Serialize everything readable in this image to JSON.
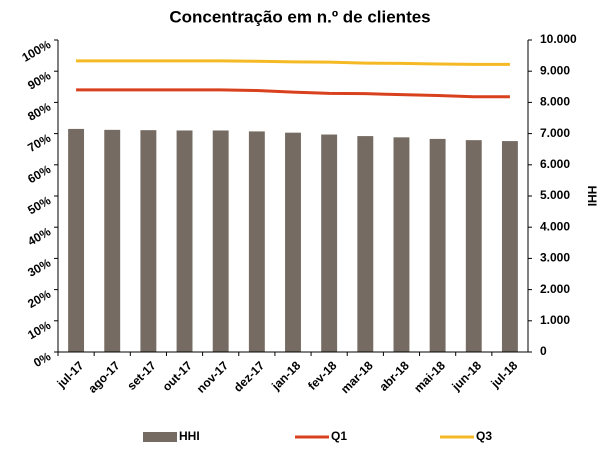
{
  "chart_data": {
    "type": "bar",
    "title": "Concentração em n.º de clientes",
    "y2label": "HHI",
    "categories": [
      "jul-17",
      "ago-17",
      "set-17",
      "out-17",
      "nov-17",
      "dez-17",
      "jan-18",
      "fev-18",
      "mar-18",
      "abr-18",
      "mai-18",
      "jun-18",
      "jul-18"
    ],
    "series": [
      {
        "name": "HHI",
        "type": "bar",
        "axis": "y2",
        "color": "#756b62",
        "values": [
          7150,
          7120,
          7110,
          7100,
          7100,
          7070,
          7030,
          6970,
          6920,
          6880,
          6830,
          6790,
          6760
        ]
      },
      {
        "name": "Q1",
        "type": "line",
        "color": "#d9411e",
        "values": [
          84,
          84,
          84,
          84,
          84,
          83.8,
          83.3,
          82.9,
          82.8,
          82.5,
          82.2,
          81.8,
          81.8
        ]
      },
      {
        "name": "Q3",
        "type": "line",
        "color": "#f5b925",
        "values": [
          93.3,
          93.3,
          93.3,
          93.3,
          93.3,
          93.2,
          93,
          92.9,
          92.6,
          92.5,
          92.3,
          92.2,
          92.2
        ]
      }
    ],
    "ylim": [
      0,
      100
    ],
    "yticks": [
      {
        "value": 0,
        "label": "0%"
      },
      {
        "value": 10,
        "label": "10%"
      },
      {
        "value": 20,
        "label": "20%"
      },
      {
        "value": 30,
        "label": "30%"
      },
      {
        "value": 40,
        "label": "40%"
      },
      {
        "value": 50,
        "label": "50%"
      },
      {
        "value": 60,
        "label": "60%"
      },
      {
        "value": 70,
        "label": "70%"
      },
      {
        "value": 80,
        "label": "80%"
      },
      {
        "value": 90,
        "label": "90%"
      },
      {
        "value": 100,
        "label": "100%"
      }
    ],
    "y2lim": [
      0,
      10000
    ],
    "y2ticks": [
      0,
      {
        "value": 1000,
        "label": "1.000"
      },
      {
        "value": 2000,
        "label": "2.000"
      },
      {
        "value": 3000,
        "label": "3.000"
      },
      {
        "value": 4000,
        "label": "4.000"
      },
      {
        "value": 5000,
        "label": "5.000"
      },
      {
        "value": 6000,
        "label": "6.000"
      },
      {
        "value": 7000,
        "label": "7.000"
      },
      {
        "value": 8000,
        "label": "8.000"
      },
      {
        "value": 9000,
        "label": "9.000"
      },
      {
        "value": 10000,
        "label": "10.000"
      }
    ],
    "legend": "bottom"
  }
}
